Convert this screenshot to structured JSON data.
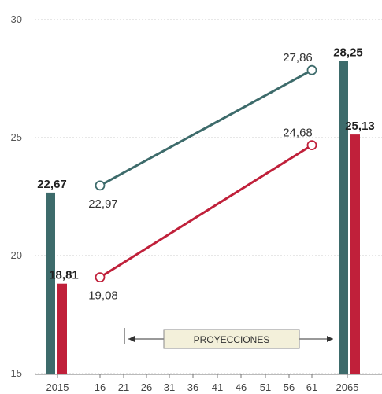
{
  "chart_data": {
    "type": "line",
    "ylim": [
      15,
      30
    ],
    "yticks": [
      15,
      20,
      25,
      30
    ],
    "x_ticks": [
      "2015",
      "16",
      "21",
      "26",
      "31",
      "36",
      "41",
      "46",
      "51",
      "56",
      "61",
      "2065"
    ],
    "annotation": "PROYECCIONES",
    "bars": [
      {
        "category": "2015",
        "color": "#3d6b6b",
        "value": 22.67,
        "label": "22,67"
      },
      {
        "category": "2015",
        "color": "#c0203a",
        "value": 18.81,
        "label": "18,81"
      },
      {
        "category": "2065",
        "color": "#3d6b6b",
        "value": 28.25,
        "label": "28,25"
      },
      {
        "category": "2065",
        "color": "#c0203a",
        "value": 25.13,
        "label": "25,13"
      }
    ],
    "series": [
      {
        "color": "#3d6b6b",
        "points": [
          {
            "x": "16",
            "y": 22.97,
            "label": "22,97"
          },
          {
            "x": "61",
            "y": 27.86,
            "label": "27,86"
          }
        ]
      },
      {
        "color": "#c0203a",
        "points": [
          {
            "x": "16",
            "y": 19.08,
            "label": "19,08"
          },
          {
            "x": "61",
            "y": 24.68,
            "label": "24,68"
          }
        ]
      }
    ]
  }
}
